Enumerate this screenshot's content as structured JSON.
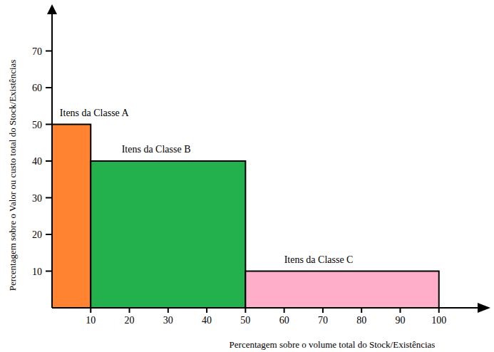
{
  "chart_data": {
    "type": "histogram",
    "bins": [
      0,
      10,
      50,
      100
    ],
    "values": [
      50,
      40,
      10
    ],
    "colors": [
      "#ff8330",
      "#22b14c",
      "#ffaec9"
    ],
    "annotations": [
      "Itens da Classe A",
      "Itens da Classe B",
      "Itens da Classe C"
    ],
    "xlabel": "Percentagem sobre o volume total do Stock/Existências",
    "ylabel": "Percentagem sobre o Valor ou custo total do Stock/Existências",
    "xlim": [
      0,
      110
    ],
    "ylim": [
      0,
      80
    ],
    "xticks": [
      10,
      20,
      30,
      40,
      50,
      60,
      70,
      80,
      90,
      100
    ],
    "yticks": [
      10,
      20,
      30,
      40,
      50,
      60,
      70
    ],
    "grid": false
  }
}
